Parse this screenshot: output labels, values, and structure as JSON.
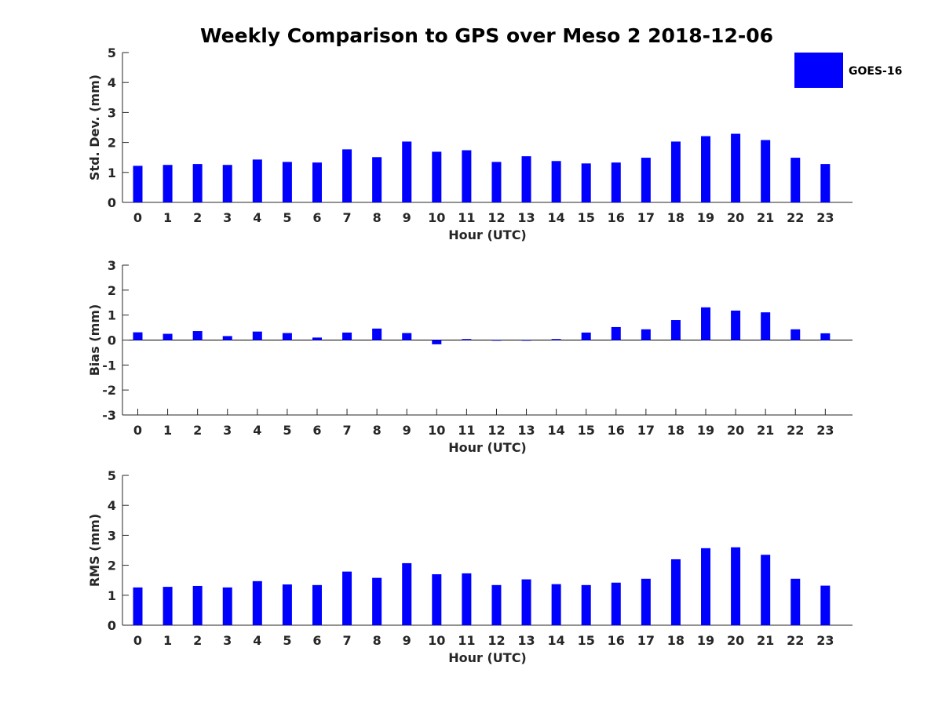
{
  "chart_data": {
    "title": "Weekly Comparison to GPS over Meso 2 2018-12-06",
    "legend": {
      "label": "GOES-16",
      "color": "#0000ff",
      "position": "top-right"
    },
    "panels": [
      {
        "type": "bar",
        "name": "std-dev",
        "ylabel": "Std. Dev. (mm)",
        "xlabel": "Hour (UTC)",
        "ylim": [
          0,
          5
        ],
        "yticks": [
          "0",
          "1",
          "2",
          "3",
          "4",
          "5"
        ],
        "categories": [
          "0",
          "1",
          "2",
          "3",
          "4",
          "5",
          "6",
          "7",
          "8",
          "9",
          "10",
          "11",
          "12",
          "13",
          "14",
          "15",
          "16",
          "17",
          "18",
          "19",
          "20",
          "21",
          "22",
          "23"
        ],
        "series": [
          {
            "name": "GOES-16",
            "values": [
              1.22,
              1.25,
              1.28,
              1.25,
              1.43,
              1.35,
              1.33,
              1.77,
              1.51,
              2.03,
              1.69,
              1.74,
              1.35,
              1.54,
              1.38,
              1.3,
              1.33,
              1.49,
              2.03,
              2.21,
              2.29,
              2.08,
              1.49,
              1.28
            ]
          }
        ]
      },
      {
        "type": "bar",
        "name": "bias",
        "ylabel": "Bias (mm)",
        "xlabel": "Hour (UTC)",
        "ylim": [
          -3,
          3
        ],
        "yticks": [
          "-3",
          "-2",
          "-1",
          "0",
          "1",
          "2",
          "3"
        ],
        "categories": [
          "0",
          "1",
          "2",
          "3",
          "4",
          "5",
          "6",
          "7",
          "8",
          "9",
          "10",
          "11",
          "12",
          "13",
          "14",
          "15",
          "16",
          "17",
          "18",
          "19",
          "20",
          "21",
          "22",
          "23"
        ],
        "series": [
          {
            "name": "GOES-16",
            "values": [
              0.31,
              0.25,
              0.36,
              0.16,
              0.34,
              0.28,
              0.1,
              0.3,
              0.46,
              0.28,
              -0.17,
              0.04,
              -0.01,
              -0.02,
              0.04,
              0.3,
              0.52,
              0.43,
              0.8,
              1.31,
              1.18,
              1.11,
              0.43,
              0.27
            ]
          }
        ]
      },
      {
        "type": "bar",
        "name": "rms",
        "ylabel": "RMS (mm)",
        "xlabel": "Hour (UTC)",
        "ylim": [
          0,
          5
        ],
        "yticks": [
          "0",
          "1",
          "2",
          "3",
          "4",
          "5"
        ],
        "categories": [
          "0",
          "1",
          "2",
          "3",
          "4",
          "5",
          "6",
          "7",
          "8",
          "9",
          "10",
          "11",
          "12",
          "13",
          "14",
          "15",
          "16",
          "17",
          "18",
          "19",
          "20",
          "21",
          "22",
          "23"
        ],
        "series": [
          {
            "name": "GOES-16",
            "values": [
              1.26,
              1.28,
              1.31,
              1.26,
              1.47,
              1.36,
              1.34,
              1.79,
              1.58,
              2.07,
              1.7,
              1.73,
              1.34,
              1.53,
              1.37,
              1.34,
              1.42,
              1.55,
              2.2,
              2.57,
              2.6,
              2.35,
              1.55,
              1.32
            ]
          }
        ]
      }
    ]
  }
}
